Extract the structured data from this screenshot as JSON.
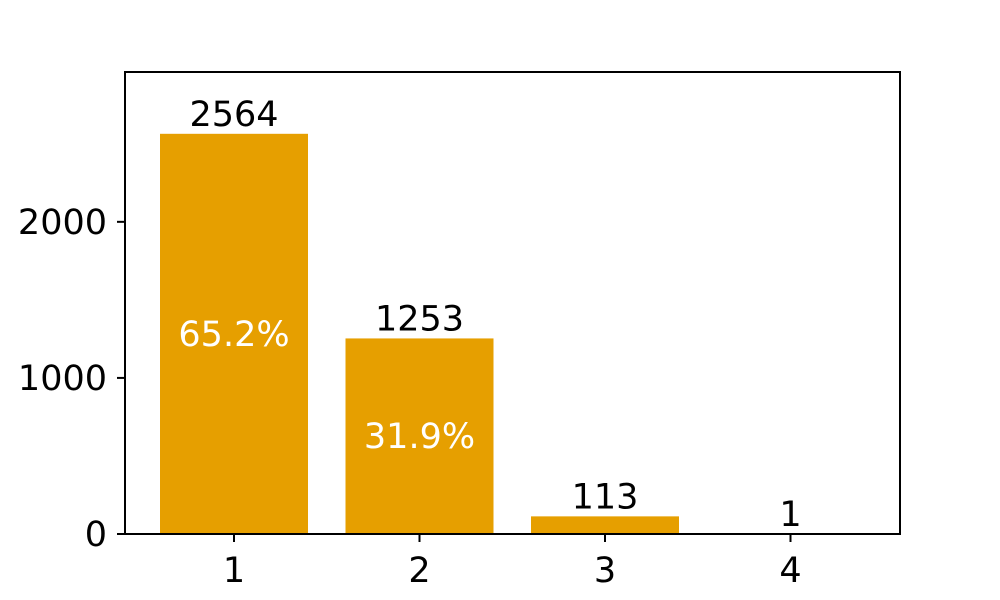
{
  "chart_data": {
    "type": "bar",
    "title": "",
    "xlabel": "",
    "ylabel": "",
    "categories": [
      "1",
      "2",
      "3",
      "4"
    ],
    "values": [
      2564,
      1253,
      113,
      1
    ],
    "value_labels": [
      "2564",
      "1253",
      "113",
      "1"
    ],
    "percent_labels": [
      "65.2%",
      "31.9%",
      "",
      ""
    ],
    "ylim": [
      0,
      2960
    ],
    "y_ticks": [
      0,
      1000,
      2000
    ],
    "y_tick_labels": [
      "0",
      "1000",
      "2000"
    ],
    "grid": false,
    "legend": "none",
    "bar_color": "#e69f00",
    "percent_text_color": "#ffffff"
  }
}
